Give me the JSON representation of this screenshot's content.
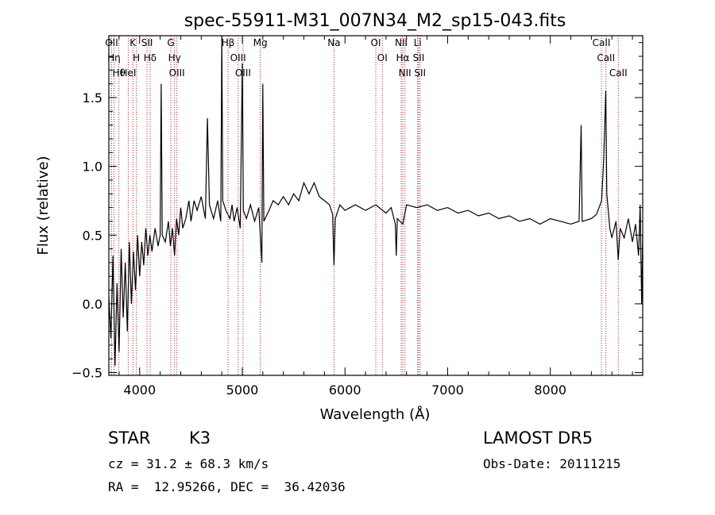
{
  "chart_data": {
    "type": "line",
    "title": "spec-55911-M31_007N34_M2_sp15-043.fits",
    "xlabel": "Wavelength (Å)",
    "ylabel": "Flux (relative)",
    "xlim": [
      3700,
      8900
    ],
    "ylim": [
      -0.52,
      1.95
    ],
    "xticks": [
      4000,
      5000,
      6000,
      7000,
      8000
    ],
    "xtick_labels": [
      "4000",
      "5000",
      "6000",
      "7000",
      "8000"
    ],
    "yticks": [
      -0.5,
      0.0,
      0.5,
      1.0,
      1.5
    ],
    "ytick_labels": [
      "−0.5",
      "0.0",
      "0.5",
      "1.0",
      "1.5"
    ],
    "grid": false,
    "line_color": "#000000",
    "marker_line_color": "#b22222",
    "spectrum": [
      [
        3700,
        0.05
      ],
      [
        3720,
        -0.25
      ],
      [
        3740,
        0.35
      ],
      [
        3760,
        -0.45
      ],
      [
        3780,
        0.15
      ],
      [
        3800,
        -0.35
      ],
      [
        3820,
        0.4
      ],
      [
        3840,
        -0.1
      ],
      [
        3860,
        0.3
      ],
      [
        3880,
        -0.2
      ],
      [
        3900,
        0.45
      ],
      [
        3920,
        0.0
      ],
      [
        3940,
        0.38
      ],
      [
        3960,
        0.1
      ],
      [
        3980,
        0.5
      ],
      [
        4000,
        0.2
      ],
      [
        4020,
        0.45
      ],
      [
        4040,
        0.28
      ],
      [
        4060,
        0.55
      ],
      [
        4080,
        0.35
      ],
      [
        4100,
        0.5
      ],
      [
        4120,
        0.38
      ],
      [
        4150,
        0.55
      ],
      [
        4180,
        0.42
      ],
      [
        4200,
        0.5
      ],
      [
        4210,
        1.6
      ],
      [
        4220,
        0.5
      ],
      [
        4250,
        0.45
      ],
      [
        4280,
        0.6
      ],
      [
        4300,
        0.42
      ],
      [
        4320,
        0.55
      ],
      [
        4340,
        0.35
      ],
      [
        4360,
        0.62
      ],
      [
        4380,
        0.5
      ],
      [
        4400,
        0.7
      ],
      [
        4420,
        0.55
      ],
      [
        4450,
        0.62
      ],
      [
        4480,
        0.75
      ],
      [
        4500,
        0.6
      ],
      [
        4530,
        0.75
      ],
      [
        4560,
        0.68
      ],
      [
        4600,
        0.78
      ],
      [
        4640,
        0.62
      ],
      [
        4660,
        1.35
      ],
      [
        4680,
        0.72
      ],
      [
        4720,
        0.62
      ],
      [
        4760,
        0.75
      ],
      [
        4790,
        0.6
      ],
      [
        4800,
        1.95
      ],
      [
        4810,
        0.75
      ],
      [
        4840,
        0.68
      ],
      [
        4880,
        0.62
      ],
      [
        4900,
        0.72
      ],
      [
        4920,
        0.6
      ],
      [
        4950,
        0.7
      ],
      [
        4980,
        0.55
      ],
      [
        5000,
        1.75
      ],
      [
        5010,
        0.68
      ],
      [
        5040,
        0.62
      ],
      [
        5080,
        0.72
      ],
      [
        5120,
        0.6
      ],
      [
        5160,
        0.7
      ],
      [
        5190,
        0.3
      ],
      [
        5200,
        1.6
      ],
      [
        5210,
        0.6
      ],
      [
        5260,
        0.68
      ],
      [
        5300,
        0.75
      ],
      [
        5350,
        0.72
      ],
      [
        5400,
        0.78
      ],
      [
        5450,
        0.72
      ],
      [
        5500,
        0.8
      ],
      [
        5550,
        0.75
      ],
      [
        5600,
        0.88
      ],
      [
        5650,
        0.8
      ],
      [
        5700,
        0.88
      ],
      [
        5750,
        0.78
      ],
      [
        5800,
        0.75
      ],
      [
        5850,
        0.72
      ],
      [
        5880,
        0.65
      ],
      [
        5893,
        0.28
      ],
      [
        5905,
        0.62
      ],
      [
        5950,
        0.72
      ],
      [
        6000,
        0.68
      ],
      [
        6100,
        0.72
      ],
      [
        6200,
        0.68
      ],
      [
        6300,
        0.72
      ],
      [
        6400,
        0.66
      ],
      [
        6450,
        0.7
      ],
      [
        6490,
        0.58
      ],
      [
        6500,
        0.35
      ],
      [
        6510,
        0.62
      ],
      [
        6563,
        0.58
      ],
      [
        6600,
        0.72
      ],
      [
        6700,
        0.7
      ],
      [
        6800,
        0.72
      ],
      [
        6900,
        0.68
      ],
      [
        7000,
        0.7
      ],
      [
        7100,
        0.66
      ],
      [
        7200,
        0.68
      ],
      [
        7300,
        0.64
      ],
      [
        7400,
        0.66
      ],
      [
        7500,
        0.62
      ],
      [
        7600,
        0.64
      ],
      [
        7700,
        0.6
      ],
      [
        7800,
        0.62
      ],
      [
        7900,
        0.58
      ],
      [
        8000,
        0.62
      ],
      [
        8100,
        0.6
      ],
      [
        8200,
        0.58
      ],
      [
        8280,
        0.6
      ],
      [
        8300,
        1.3
      ],
      [
        8310,
        0.6
      ],
      [
        8400,
        0.62
      ],
      [
        8450,
        0.65
      ],
      [
        8500,
        0.75
      ],
      [
        8520,
        1.05
      ],
      [
        8540,
        1.55
      ],
      [
        8550,
        0.8
      ],
      [
        8580,
        0.55
      ],
      [
        8600,
        0.48
      ],
      [
        8640,
        0.6
      ],
      [
        8662,
        0.32
      ],
      [
        8680,
        0.55
      ],
      [
        8720,
        0.48
      ],
      [
        8760,
        0.62
      ],
      [
        8800,
        0.45
      ],
      [
        8830,
        0.58
      ],
      [
        8860,
        0.35
      ],
      [
        8875,
        0.72
      ],
      [
        8890,
        0.0
      ],
      [
        8900,
        0.5
      ]
    ],
    "lines": [
      {
        "wavelength": 3727,
        "label": "OII"
      },
      {
        "wavelength": 3750,
        "label": "Hη"
      },
      {
        "wavelength": 3798,
        "label": "Hθ"
      },
      {
        "wavelength": 3889,
        "label": "HeI"
      },
      {
        "wavelength": 3934,
        "label": "K"
      },
      {
        "wavelength": 3968,
        "label": "H"
      },
      {
        "wavelength": 4072,
        "label": "SII"
      },
      {
        "wavelength": 4102,
        "label": "Hδ"
      },
      {
        "wavelength": 4304,
        "label": "G"
      },
      {
        "wavelength": 4340,
        "label": "Hγ"
      },
      {
        "wavelength": 4363,
        "label": "OIII"
      },
      {
        "wavelength": 4861,
        "label": "Hβ"
      },
      {
        "wavelength": 4959,
        "label": "OIII"
      },
      {
        "wavelength": 5007,
        "label": "OIII"
      },
      {
        "wavelength": 5175,
        "label": "Mg"
      },
      {
        "wavelength": 5893,
        "label": "Na"
      },
      {
        "wavelength": 6300,
        "label": "OI"
      },
      {
        "wavelength": 6364,
        "label": "OI"
      },
      {
        "wavelength": 6548,
        "label": "NII"
      },
      {
        "wavelength": 6563,
        "label": "Hα"
      },
      {
        "wavelength": 6584,
        "label": "NII"
      },
      {
        "wavelength": 6708,
        "label": "Li"
      },
      {
        "wavelength": 6717,
        "label": "SII"
      },
      {
        "wavelength": 6731,
        "label": "SII"
      },
      {
        "wavelength": 8498,
        "label": "CaII"
      },
      {
        "wavelength": 8542,
        "label": "CaII"
      },
      {
        "wavelength": 8662,
        "label": "CaII"
      }
    ]
  },
  "info": {
    "class_label": "STAR",
    "subclass": "K3",
    "survey": "LAMOST DR5",
    "cz": "cz = 31.2 ± 68.3 km/s",
    "obs_date": "Obs-Date: 20111215",
    "coords": "RA =  12.95266, DEC =  36.42036"
  }
}
